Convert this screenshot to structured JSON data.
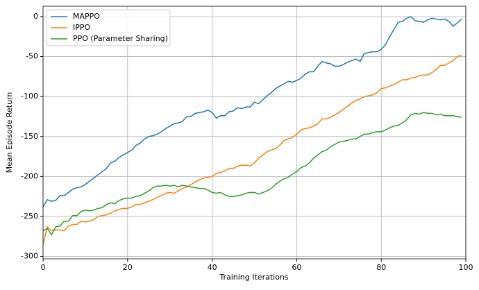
{
  "chart_data": {
    "type": "line",
    "xlabel": "Training Iterations",
    "ylabel": "Mean Episode Return",
    "x": [
      0,
      1,
      2,
      3,
      4,
      5,
      6,
      7,
      8,
      9,
      10,
      11,
      12,
      13,
      14,
      15,
      16,
      17,
      18,
      19,
      20,
      21,
      22,
      23,
      24,
      25,
      26,
      27,
      28,
      29,
      30,
      31,
      32,
      33,
      34,
      35,
      36,
      37,
      38,
      39,
      40,
      41,
      42,
      43,
      44,
      45,
      46,
      47,
      48,
      49,
      50,
      51,
      52,
      53,
      54,
      55,
      56,
      57,
      58,
      59,
      60,
      61,
      62,
      63,
      64,
      65,
      66,
      67,
      68,
      69,
      70,
      71,
      72,
      73,
      74,
      75,
      76,
      77,
      78,
      79,
      80,
      81,
      82,
      83,
      84,
      85,
      86,
      87,
      88,
      89,
      90,
      91,
      92,
      93,
      94,
      95,
      96,
      97,
      98,
      99
    ],
    "series": [
      {
        "name": "MAPPO",
        "color": "#1f77b4",
        "values": [
          -238,
          -229,
          -231,
          -230,
          -224,
          -224,
          -220,
          -216,
          -214,
          -213,
          -210,
          -206,
          -202,
          -198,
          -194,
          -190,
          -183,
          -181,
          -176,
          -173,
          -170,
          -167,
          -161,
          -158,
          -153,
          -150,
          -149,
          -147,
          -144,
          -140,
          -137,
          -134,
          -133,
          -131,
          -125,
          -125,
          -121,
          -120,
          -119,
          -117,
          -120,
          -127,
          -124,
          -124,
          -119,
          -118,
          -114,
          -115,
          -113,
          -113,
          -107,
          -109,
          -104,
          -99,
          -95,
          -90,
          -87,
          -84,
          -81,
          -82,
          -80,
          -77,
          -72,
          -69,
          -69,
          -62,
          -56,
          -58,
          -59,
          -62,
          -62,
          -60,
          -57,
          -55,
          -53,
          -56,
          -46,
          -45,
          -44,
          -44,
          -41,
          -35,
          -25,
          -16,
          -7,
          -6,
          -2,
          0,
          -5,
          -6,
          -7,
          -4,
          -2,
          -3,
          -4,
          -3,
          -6,
          -12,
          -8,
          -3
        ]
      },
      {
        "name": "IPPO",
        "color": "#ff7f0e",
        "values": [
          -285,
          -263,
          -268,
          -267,
          -267,
          -268,
          -262,
          -260,
          -260,
          -256,
          -257,
          -256,
          -254,
          -250,
          -249,
          -248,
          -246,
          -243,
          -241,
          -240,
          -240,
          -238,
          -235,
          -235,
          -233,
          -231,
          -229,
          -226,
          -224,
          -221,
          -220,
          -221,
          -218,
          -215,
          -213,
          -210,
          -207,
          -204,
          -202,
          -201,
          -200,
          -196,
          -195,
          -193,
          -190,
          -190,
          -187,
          -186,
          -186,
          -187,
          -183,
          -177,
          -173,
          -169,
          -167,
          -165,
          -161,
          -155,
          -153,
          -151,
          -147,
          -142,
          -140,
          -139,
          -137,
          -134,
          -128,
          -128,
          -126,
          -123,
          -120,
          -116,
          -112,
          -108,
          -105,
          -103,
          -100,
          -99,
          -98,
          -95,
          -90,
          -89,
          -87,
          -85,
          -82,
          -79,
          -79,
          -77,
          -76,
          -74,
          -73,
          -73,
          -70,
          -66,
          -61,
          -61,
          -58,
          -55,
          -50,
          -48
        ]
      },
      {
        "name": "PPO (Parameter Sharing)",
        "color": "#2ca02c",
        "values": [
          -268,
          -265,
          -273,
          -263,
          -262,
          -256,
          -256,
          -249,
          -249,
          -244,
          -242,
          -243,
          -242,
          -240,
          -239,
          -235,
          -233,
          -234,
          -230,
          -228,
          -227,
          -227,
          -225,
          -224,
          -221,
          -218,
          -214,
          -212,
          -212,
          -211,
          -212,
          -211,
          -213,
          -211,
          -212,
          -213,
          -214,
          -215,
          -215,
          -217,
          -220,
          -221,
          -220,
          -223,
          -225,
          -225,
          -224,
          -223,
          -221,
          -220,
          -220,
          -222,
          -220,
          -218,
          -215,
          -210,
          -206,
          -203,
          -201,
          -197,
          -194,
          -189,
          -187,
          -183,
          -177,
          -173,
          -169,
          -167,
          -163,
          -160,
          -157,
          -156,
          -155,
          -153,
          -153,
          -150,
          -147,
          -147,
          -145,
          -144,
          -144,
          -142,
          -139,
          -137,
          -136,
          -133,
          -129,
          -123,
          -121,
          -122,
          -120,
          -121,
          -121,
          -123,
          -122,
          -124,
          -124,
          -124,
          -125,
          -126
        ]
      }
    ],
    "xlim": [
      0,
      100
    ],
    "ylim": [
      -303,
      13
    ],
    "xticks": [
      0,
      20,
      40,
      60,
      80,
      100
    ],
    "yticks": [
      0,
      -50,
      -100,
      -150,
      -200,
      -250,
      -300
    ],
    "grid": true,
    "legend": "upper left"
  }
}
